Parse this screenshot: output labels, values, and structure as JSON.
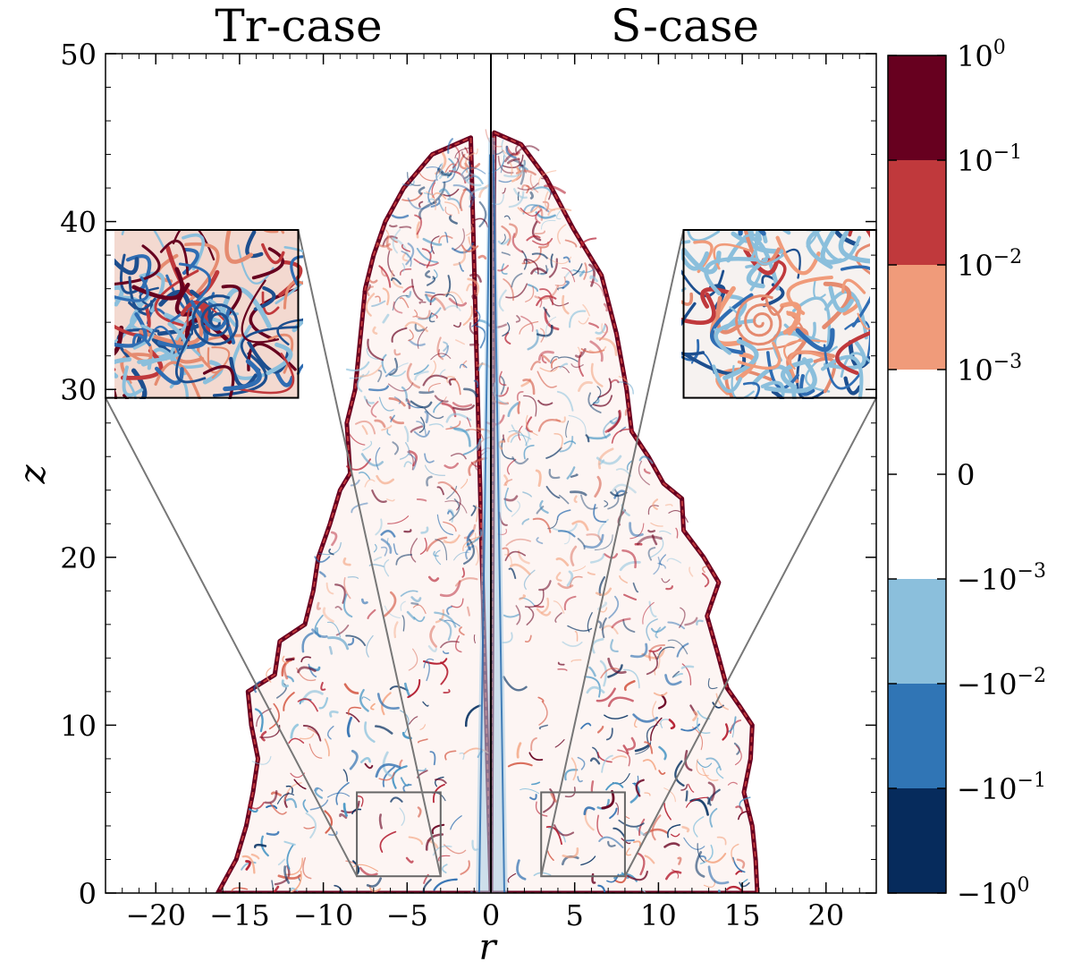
{
  "chart_data": {
    "type": "heatmap",
    "panels": [
      {
        "title": "Tr-case",
        "side": "left"
      },
      {
        "title": "S-case",
        "side": "right"
      }
    ],
    "xlabel": "r",
    "ylabel": "z",
    "xlim": [
      -23,
      23
    ],
    "ylim": [
      0,
      50
    ],
    "x_ticks": [
      {
        "v": -20,
        "label": "−20"
      },
      {
        "v": -15,
        "label": "−15"
      },
      {
        "v": -10,
        "label": "−10"
      },
      {
        "v": -5,
        "label": "−5"
      },
      {
        "v": 0,
        "label": "0"
      },
      {
        "v": 5,
        "label": "5"
      },
      {
        "v": 10,
        "label": "10"
      },
      {
        "v": 15,
        "label": "15"
      },
      {
        "v": 20,
        "label": "20"
      }
    ],
    "y_ticks": [
      {
        "v": 0,
        "label": "0"
      },
      {
        "v": 10,
        "label": "10"
      },
      {
        "v": 20,
        "label": "20"
      },
      {
        "v": 30,
        "label": "30"
      },
      {
        "v": 40,
        "label": "40"
      },
      {
        "v": 50,
        "label": "50"
      }
    ],
    "colorbar": {
      "levels": [
        {
          "color": "#67001f"
        },
        {
          "color": "#c0393c"
        },
        {
          "color": "#f09b7a"
        },
        {
          "color": "#ffffff"
        },
        {
          "color": "#ffffff"
        },
        {
          "color": "#8bbfdc"
        },
        {
          "color": "#3075b5"
        },
        {
          "color": "#062b5c"
        }
      ],
      "labels": [
        {
          "base": "10",
          "exp": "0",
          "sign": "",
          "pos": 0
        },
        {
          "base": "10",
          "exp": "−1",
          "sign": "",
          "pos": 1
        },
        {
          "base": "10",
          "exp": "−2",
          "sign": "",
          "pos": 2
        },
        {
          "base": "10",
          "exp": "−3",
          "sign": "",
          "pos": 3
        },
        {
          "base": "0",
          "exp": "",
          "sign": "",
          "pos": 4
        },
        {
          "base": "10",
          "exp": "−3",
          "sign": "−",
          "pos": 5
        },
        {
          "base": "10",
          "exp": "−2",
          "sign": "−",
          "pos": 6
        },
        {
          "base": "10",
          "exp": "−1",
          "sign": "−",
          "pos": 7
        },
        {
          "base": "10",
          "exp": "0",
          "sign": "−",
          "pos": 8
        }
      ]
    },
    "zoom_regions": [
      {
        "panel": "Tr-case",
        "x": [
          -8,
          -3
        ],
        "z": [
          1,
          6
        ],
        "inset": {
          "x": [
            -23,
            -11.5
          ],
          "z": [
            29.5,
            39.5
          ]
        }
      },
      {
        "panel": "S-case",
        "x": [
          3,
          8
        ],
        "z": [
          1,
          6
        ],
        "inset": {
          "x": [
            11.5,
            23
          ],
          "z": [
            29.5,
            39.5
          ]
        }
      }
    ],
    "outline": {
      "left": [
        [
          -16.3,
          0
        ],
        [
          -15.2,
          2
        ],
        [
          -14.6,
          4
        ],
        [
          -14.2,
          6
        ],
        [
          -13.9,
          8
        ],
        [
          -14.3,
          10
        ],
        [
          -14.5,
          12
        ],
        [
          -12.9,
          13
        ],
        [
          -12.6,
          15
        ],
        [
          -11.1,
          16
        ],
        [
          -10.6,
          18
        ],
        [
          -10.3,
          20
        ],
        [
          -9.6,
          22
        ],
        [
          -9.0,
          24
        ],
        [
          -8.4,
          25
        ],
        [
          -8.6,
          28
        ],
        [
          -8.1,
          30
        ],
        [
          -7.8,
          33
        ],
        [
          -7.5,
          36
        ],
        [
          -7.0,
          38
        ],
        [
          -6.3,
          40
        ],
        [
          -5.2,
          42
        ],
        [
          -3.5,
          44
        ],
        [
          -1.2,
          45
        ]
      ],
      "right": [
        [
          0.2,
          45.3
        ],
        [
          1.8,
          44.6
        ],
        [
          3.3,
          42.6
        ],
        [
          4.9,
          39.6
        ],
        [
          6.6,
          36.8
        ],
        [
          7.5,
          33.3
        ],
        [
          8.1,
          30
        ],
        [
          8.4,
          27.5
        ],
        [
          9.4,
          26
        ],
        [
          10.3,
          24.4
        ],
        [
          11.4,
          23.5
        ],
        [
          11.5,
          21.6
        ],
        [
          12.7,
          20
        ],
        [
          13.6,
          18.5
        ],
        [
          12.9,
          16.5
        ],
        [
          13.5,
          14.4
        ],
        [
          14.1,
          12.2
        ],
        [
          14.8,
          11.2
        ],
        [
          15.6,
          10
        ],
        [
          15.5,
          8
        ],
        [
          15.1,
          6
        ],
        [
          15.6,
          4
        ],
        [
          15.8,
          2
        ],
        [
          15.9,
          0
        ]
      ]
    }
  }
}
